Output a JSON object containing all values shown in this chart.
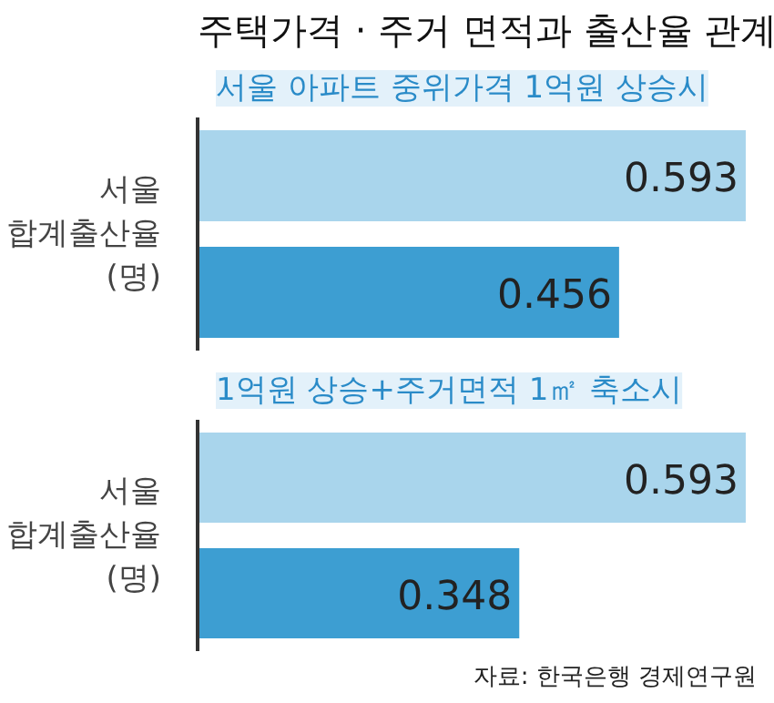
{
  "chart_data": [
    {
      "type": "bar",
      "orientation": "horizontal",
      "title": "주택가격 · 주거 면적과 출산율 관계",
      "subtitle": "서울 아파트 중위가격 1억원 상승시",
      "ylabel": "서울\n합계출산율\n(명)",
      "categories": [
        null
      ],
      "series": [
        {
          "color": "#a9d5ec",
          "values": [
            0.593
          ]
        },
        {
          "color": "#3d9ed2",
          "values": [
            0.456
          ]
        }
      ],
      "data_labels": true
    },
    {
      "type": "bar",
      "orientation": "horizontal",
      "subtitle": "1억원 상승+주거면적 1㎡ 축소시",
      "ylabel": "서울\n합계출산율\n(명)",
      "categories": [
        null
      ],
      "series": [
        {
          "color": "#a9d5ec",
          "values": [
            0.593
          ]
        },
        {
          "color": "#3d9ed2",
          "values": [
            0.348
          ]
        }
      ],
      "data_labels": true,
      "annotations": [
        "자료: 한국은행 경제연구원"
      ]
    }
  ]
}
